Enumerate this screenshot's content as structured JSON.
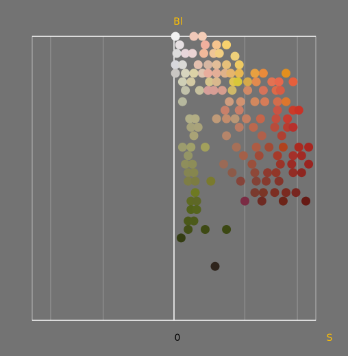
{
  "chart_data": {
    "type": "scatter",
    "title": "",
    "xlabel": "S",
    "ylabel": "Bl",
    "origin_label": "0",
    "xlim": [
      -1.0,
      1.0
    ],
    "ylim": [
      0.0,
      1.0
    ],
    "x_gridlines": [
      -0.87,
      -0.5,
      0.0,
      0.5,
      0.87
    ],
    "grid": true,
    "legend": "none",
    "colors": {
      "background": "#737373",
      "frame": "#b8b8b8",
      "grid": "#9a9a9a",
      "axis": "#ffffff",
      "label": "#ffc000",
      "tick_label": "#000000"
    },
    "points": [
      {
        "x": 0.01,
        "y": 1.0,
        "c": "#f2f2f2"
      },
      {
        "x": 0.14,
        "y": 1.0,
        "c": "#f0c8b8"
      },
      {
        "x": 0.2,
        "y": 1.0,
        "c": "#f4cdb7"
      },
      {
        "x": 0.04,
        "y": 0.97,
        "c": "#e6e0e2"
      },
      {
        "x": 0.22,
        "y": 0.97,
        "c": "#f2b09e"
      },
      {
        "x": 0.3,
        "y": 0.97,
        "c": "#f6c48e"
      },
      {
        "x": 0.37,
        "y": 0.97,
        "c": "#f7d16e"
      },
      {
        "x": 0.02,
        "y": 0.94,
        "c": "#dddcdc"
      },
      {
        "x": 0.08,
        "y": 0.94,
        "c": "#e7d6da"
      },
      {
        "x": 0.13,
        "y": 0.94,
        "c": "#ead3d3"
      },
      {
        "x": 0.21,
        "y": 0.94,
        "c": "#f0b89a"
      },
      {
        "x": 0.28,
        "y": 0.94,
        "c": "#eec596"
      },
      {
        "x": 0.32,
        "y": 0.94,
        "c": "#f1ce82"
      },
      {
        "x": 0.43,
        "y": 0.93,
        "c": "#eed07a"
      },
      {
        "x": 0.01,
        "y": 0.9,
        "c": "#d8d8dc"
      },
      {
        "x": 0.06,
        "y": 0.9,
        "c": "#dad9d6"
      },
      {
        "x": 0.17,
        "y": 0.9,
        "c": "#e3bfae"
      },
      {
        "x": 0.24,
        "y": 0.9,
        "c": "#d6b6a2"
      },
      {
        "x": 0.3,
        "y": 0.9,
        "c": "#e2bd98"
      },
      {
        "x": 0.37,
        "y": 0.9,
        "c": "#e6c07a"
      },
      {
        "x": 0.46,
        "y": 0.9,
        "c": "#eec962"
      },
      {
        "x": 0.01,
        "y": 0.87,
        "c": "#c9c6c3"
      },
      {
        "x": 0.08,
        "y": 0.87,
        "c": "#d7d5bf"
      },
      {
        "x": 0.14,
        "y": 0.87,
        "c": "#dcd2a6"
      },
      {
        "x": 0.2,
        "y": 0.87,
        "c": "#dfc4b0"
      },
      {
        "x": 0.24,
        "y": 0.87,
        "c": "#e8ad9c"
      },
      {
        "x": 0.3,
        "y": 0.87,
        "c": "#e3ae97"
      },
      {
        "x": 0.36,
        "y": 0.87,
        "c": "#e0b28a"
      },
      {
        "x": 0.4,
        "y": 0.87,
        "c": "#e6b56c"
      },
      {
        "x": 0.46,
        "y": 0.87,
        "c": "#e8b752"
      },
      {
        "x": 0.57,
        "y": 0.87,
        "c": "#e8a040"
      },
      {
        "x": 0.63,
        "y": 0.87,
        "c": "#e98a3a"
      },
      {
        "x": 0.79,
        "y": 0.87,
        "c": "#e38f1e"
      },
      {
        "x": 0.06,
        "y": 0.84,
        "c": "#cfcfb6"
      },
      {
        "x": 0.12,
        "y": 0.84,
        "c": "#d3c9a3"
      },
      {
        "x": 0.25,
        "y": 0.84,
        "c": "#d6c48c"
      },
      {
        "x": 0.3,
        "y": 0.84,
        "c": "#d9b88d"
      },
      {
        "x": 0.42,
        "y": 0.84,
        "c": "#e0c450"
      },
      {
        "x": 0.45,
        "y": 0.84,
        "c": "#d9c73a"
      },
      {
        "x": 0.52,
        "y": 0.84,
        "c": "#d6a94a"
      },
      {
        "x": 0.58,
        "y": 0.84,
        "c": "#e28a4e"
      },
      {
        "x": 0.69,
        "y": 0.84,
        "c": "#e27252"
      },
      {
        "x": 0.74,
        "y": 0.84,
        "c": "#e7684c"
      },
      {
        "x": 0.84,
        "y": 0.84,
        "c": "#e55f3c"
      },
      {
        "x": 0.08,
        "y": 0.81,
        "c": "#c1c1aa"
      },
      {
        "x": 0.18,
        "y": 0.81,
        "c": "#c6c09e"
      },
      {
        "x": 0.24,
        "y": 0.81,
        "c": "#d69f9a"
      },
      {
        "x": 0.28,
        "y": 0.81,
        "c": "#d79e95"
      },
      {
        "x": 0.34,
        "y": 0.81,
        "c": "#d69d8e"
      },
      {
        "x": 0.41,
        "y": 0.81,
        "c": "#cfb868"
      },
      {
        "x": 0.52,
        "y": 0.81,
        "c": "#d28a66"
      },
      {
        "x": 0.63,
        "y": 0.81,
        "c": "#d5735a"
      },
      {
        "x": 0.72,
        "y": 0.81,
        "c": "#dc6a48"
      },
      {
        "x": 0.75,
        "y": 0.81,
        "c": "#d75c44"
      },
      {
        "x": 0.06,
        "y": 0.77,
        "c": "#b6b89e"
      },
      {
        "x": 0.39,
        "y": 0.77,
        "c": "#cf9d7e"
      },
      {
        "x": 0.47,
        "y": 0.77,
        "c": "#d19270"
      },
      {
        "x": 0.57,
        "y": 0.77,
        "c": "#d2885e"
      },
      {
        "x": 0.64,
        "y": 0.77,
        "c": "#d67c58"
      },
      {
        "x": 0.73,
        "y": 0.77,
        "c": "#d26d4c"
      },
      {
        "x": 0.79,
        "y": 0.77,
        "c": "#dd762e"
      },
      {
        "x": 0.36,
        "y": 0.74,
        "c": "#c8806a"
      },
      {
        "x": 0.46,
        "y": 0.74,
        "c": "#c97e68"
      },
      {
        "x": 0.73,
        "y": 0.74,
        "c": "#c95444"
      },
      {
        "x": 0.84,
        "y": 0.74,
        "c": "#cb3b28"
      },
      {
        "x": 0.88,
        "y": 0.74,
        "c": "#c83226"
      },
      {
        "x": 0.11,
        "y": 0.71,
        "c": "#b0ae88"
      },
      {
        "x": 0.15,
        "y": 0.71,
        "c": "#b2ad84"
      },
      {
        "x": 0.3,
        "y": 0.71,
        "c": "#bf9a78"
      },
      {
        "x": 0.37,
        "y": 0.71,
        "c": "#c38c6c"
      },
      {
        "x": 0.43,
        "y": 0.71,
        "c": "#b89776"
      },
      {
        "x": 0.51,
        "y": 0.71,
        "c": "#c47f62"
      },
      {
        "x": 0.61,
        "y": 0.71,
        "c": "#c6654a"
      },
      {
        "x": 0.72,
        "y": 0.71,
        "c": "#c44e3e"
      },
      {
        "x": 0.8,
        "y": 0.71,
        "c": "#c63b30"
      },
      {
        "x": 0.12,
        "y": 0.68,
        "c": "#a6a27a"
      },
      {
        "x": 0.17,
        "y": 0.68,
        "c": "#a9a37a"
      },
      {
        "x": 0.46,
        "y": 0.68,
        "c": "#bb7c64"
      },
      {
        "x": 0.56,
        "y": 0.68,
        "c": "#bb684e"
      },
      {
        "x": 0.71,
        "y": 0.68,
        "c": "#b84c3c"
      },
      {
        "x": 0.8,
        "y": 0.68,
        "c": "#b83c30"
      },
      {
        "x": 0.84,
        "y": 0.68,
        "c": "#b6302c"
      },
      {
        "x": 0.14,
        "y": 0.65,
        "c": "#a9a376"
      },
      {
        "x": 0.37,
        "y": 0.65,
        "c": "#b5856a"
      },
      {
        "x": 0.62,
        "y": 0.65,
        "c": "#b0604a"
      },
      {
        "x": 0.76,
        "y": 0.65,
        "c": "#b04032"
      },
      {
        "x": 0.06,
        "y": 0.61,
        "c": "#9c9c6e"
      },
      {
        "x": 0.12,
        "y": 0.61,
        "c": "#a0a06a"
      },
      {
        "x": 0.22,
        "y": 0.61,
        "c": "#a2a05c"
      },
      {
        "x": 0.44,
        "y": 0.61,
        "c": "#a67058"
      },
      {
        "x": 0.58,
        "y": 0.61,
        "c": "#ad5c44"
      },
      {
        "x": 0.67,
        "y": 0.61,
        "c": "#a24a34"
      },
      {
        "x": 0.77,
        "y": 0.61,
        "c": "#b1431e"
      },
      {
        "x": 0.88,
        "y": 0.61,
        "c": "#ab2a20"
      },
      {
        "x": 0.95,
        "y": 0.61,
        "c": "#a82620"
      },
      {
        "x": 0.1,
        "y": 0.58,
        "c": "#949566"
      },
      {
        "x": 0.49,
        "y": 0.58,
        "c": "#a46048"
      },
      {
        "x": 0.6,
        "y": 0.58,
        "c": "#a04a38"
      },
      {
        "x": 0.73,
        "y": 0.58,
        "c": "#a63a2a"
      },
      {
        "x": 0.84,
        "y": 0.58,
        "c": "#a5302a"
      },
      {
        "x": 0.9,
        "y": 0.58,
        "c": "#a22a24"
      },
      {
        "x": 0.08,
        "y": 0.55,
        "c": "#8e8e5c"
      },
      {
        "x": 0.13,
        "y": 0.55,
        "c": "#8d8d58"
      },
      {
        "x": 0.35,
        "y": 0.55,
        "c": "#9a6a56"
      },
      {
        "x": 0.55,
        "y": 0.55,
        "c": "#9a503c"
      },
      {
        "x": 0.75,
        "y": 0.55,
        "c": "#9b3428"
      },
      {
        "x": 0.83,
        "y": 0.55,
        "c": "#9c2a24"
      },
      {
        "x": 0.95,
        "y": 0.55,
        "c": "#9a2420"
      },
      {
        "x": 0.1,
        "y": 0.52,
        "c": "#858552"
      },
      {
        "x": 0.14,
        "y": 0.52,
        "c": "#86864e"
      },
      {
        "x": 0.41,
        "y": 0.52,
        "c": "#8c5a48"
      },
      {
        "x": 0.57,
        "y": 0.52,
        "c": "#8e4838"
      },
      {
        "x": 0.66,
        "y": 0.52,
        "c": "#8f3a2e"
      },
      {
        "x": 0.72,
        "y": 0.52,
        "c": "#923628"
      },
      {
        "x": 0.84,
        "y": 0.52,
        "c": "#922c24"
      },
      {
        "x": 0.9,
        "y": 0.52,
        "c": "#8e2620"
      },
      {
        "x": 0.1,
        "y": 0.49,
        "c": "#7e7e46"
      },
      {
        "x": 0.15,
        "y": 0.49,
        "c": "#7c7c42"
      },
      {
        "x": 0.26,
        "y": 0.49,
        "c": "#7a7a2e"
      },
      {
        "x": 0.47,
        "y": 0.49,
        "c": "#85443a"
      },
      {
        "x": 0.58,
        "y": 0.49,
        "c": "#834236"
      },
      {
        "x": 0.65,
        "y": 0.49,
        "c": "#863a2e"
      },
      {
        "x": 0.74,
        "y": 0.49,
        "c": "#84342a"
      },
      {
        "x": 0.15,
        "y": 0.45,
        "c": "#6e7a22"
      },
      {
        "x": 0.57,
        "y": 0.45,
        "c": "#7a3a2e"
      },
      {
        "x": 0.63,
        "y": 0.45,
        "c": "#7a3626"
      },
      {
        "x": 0.71,
        "y": 0.45,
        "c": "#7c2e22"
      },
      {
        "x": 0.79,
        "y": 0.45,
        "c": "#7a2a20"
      },
      {
        "x": 0.86,
        "y": 0.45,
        "c": "#782620"
      },
      {
        "x": 0.12,
        "y": 0.42,
        "c": "#5e6a22"
      },
      {
        "x": 0.16,
        "y": 0.42,
        "c": "#5e6826"
      },
      {
        "x": 0.5,
        "y": 0.42,
        "c": "#7a2c44"
      },
      {
        "x": 0.62,
        "y": 0.42,
        "c": "#6e2a22"
      },
      {
        "x": 0.77,
        "y": 0.42,
        "c": "#6c2418"
      },
      {
        "x": 0.93,
        "y": 0.42,
        "c": "#661a14"
      },
      {
        "x": 0.12,
        "y": 0.39,
        "c": "#52621a"
      },
      {
        "x": 0.16,
        "y": 0.39,
        "c": "#55641c"
      },
      {
        "x": 0.1,
        "y": 0.35,
        "c": "#4a5818"
      },
      {
        "x": 0.14,
        "y": 0.35,
        "c": "#4c5a1a"
      },
      {
        "x": 0.1,
        "y": 0.32,
        "c": "#434f17"
      },
      {
        "x": 0.22,
        "y": 0.32,
        "c": "#3e4a14"
      },
      {
        "x": 0.37,
        "y": 0.32,
        "c": "#3c4813"
      },
      {
        "x": 0.05,
        "y": 0.29,
        "c": "#343d12"
      },
      {
        "x": 0.29,
        "y": 0.19,
        "c": "#2e241c"
      }
    ]
  }
}
